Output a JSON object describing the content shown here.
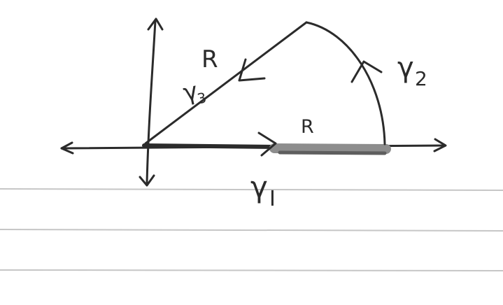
{
  "diagram": {
    "labels": {
      "radius_diagonal": "R",
      "radius_base": "R",
      "gamma1_symbol": "γ",
      "gamma1_subscript": "I",
      "gamma2_symbol": "γ",
      "gamma2_subscript": "2",
      "gamma3_symbol": "γ",
      "gamma3_subscript": "3"
    },
    "colors": {
      "ink": "#2b2b2b",
      "shaded_segment": "#8d8d8d",
      "notebook_rule": "#c6c6c6",
      "paper": "#ffffff"
    }
  }
}
